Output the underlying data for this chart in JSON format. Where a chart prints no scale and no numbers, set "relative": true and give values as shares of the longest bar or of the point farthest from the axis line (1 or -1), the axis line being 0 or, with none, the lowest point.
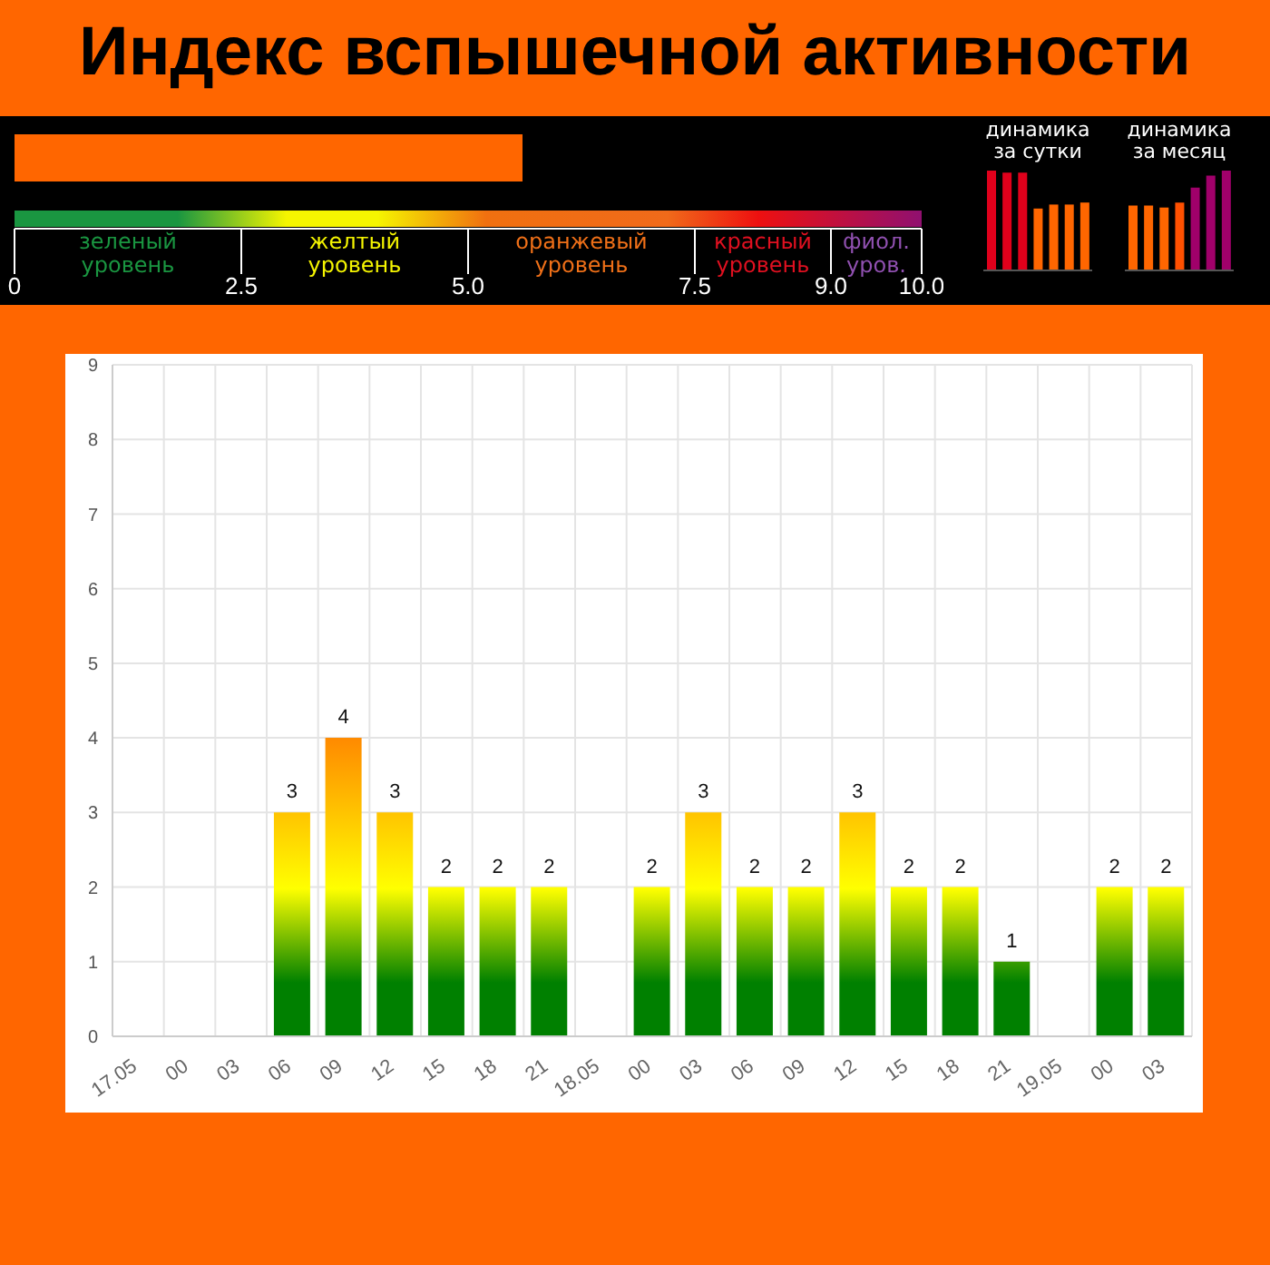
{
  "chart_data": [
    {
      "type": "bar",
      "title": "Индекс вспышечной активности",
      "orientation": "horizontal",
      "categories": [
        null
      ],
      "values": [
        5.6
      ],
      "color": "#ff6600",
      "xlim": [
        0,
        10
      ],
      "xticks": [
        0,
        {
          "value": 2.5,
          "label": "2.5"
        },
        {
          "value": 5,
          "label": "5.0"
        },
        {
          "value": 7.5,
          "label": "7.5"
        },
        {
          "value": 9,
          "label": "9.0"
        },
        {
          "value": 10,
          "label": "10.0"
        }
      ],
      "annotations": [
        "зеленый уровень",
        "желтый уровень",
        "оранжевый уровень",
        "красный уровень",
        "фиол. уров."
      ],
      "tick_labels": "x"
    },
    {
      "type": "bar",
      "title": "динамика за сутки",
      "relative": true,
      "categories": [
        null,
        null,
        null,
        null,
        null,
        null,
        null
      ],
      "values": [
        1,
        0.98,
        0.98,
        0.62,
        0.66,
        0.66,
        0.68
      ],
      "colors": [
        "#e0001b",
        "#e0001b",
        "#e0001b",
        "#ff6600",
        "#ff6600",
        "#ff6600",
        "#ff6600"
      ]
    },
    {
      "type": "bar",
      "title": "динамика за месяц",
      "relative": true,
      "categories": [
        null,
        null,
        null,
        null,
        null,
        null,
        null
      ],
      "values": [
        0.65,
        0.65,
        0.63,
        0.68,
        0.83,
        0.95,
        1
      ],
      "colors": [
        "#ff6600",
        "#ff6600",
        "#ff6600",
        "#ff5000",
        "#a0006a",
        "#a0006a",
        "#a0006a"
      ]
    },
    {
      "type": "bar",
      "categories": [
        "17.05",
        "00",
        "03",
        "06",
        "09",
        "12",
        "15",
        "18",
        "21",
        "18.05",
        "00",
        "03",
        "06",
        "09",
        "12",
        "15",
        "18",
        "21",
        "19.05",
        "00",
        "03"
      ],
      "values": [
        0,
        0,
        0,
        3,
        4,
        3,
        2,
        2,
        2,
        0,
        2,
        3,
        2,
        2,
        3,
        2,
        2,
        1,
        0,
        2,
        2
      ],
      "value_labels": [
        null,
        null,
        null,
        "3",
        "4",
        "3",
        "2",
        "2",
        "2",
        null,
        "2",
        "3",
        "2",
        "2",
        "3",
        "2",
        "2",
        "1",
        null,
        "2",
        "2"
      ],
      "color": "#008000",
      "ylim": [
        0,
        9
      ],
      "yticks": [
        0,
        1,
        2,
        3,
        4,
        5,
        6,
        7,
        8,
        9
      ],
      "grid": true
    }
  ]
}
